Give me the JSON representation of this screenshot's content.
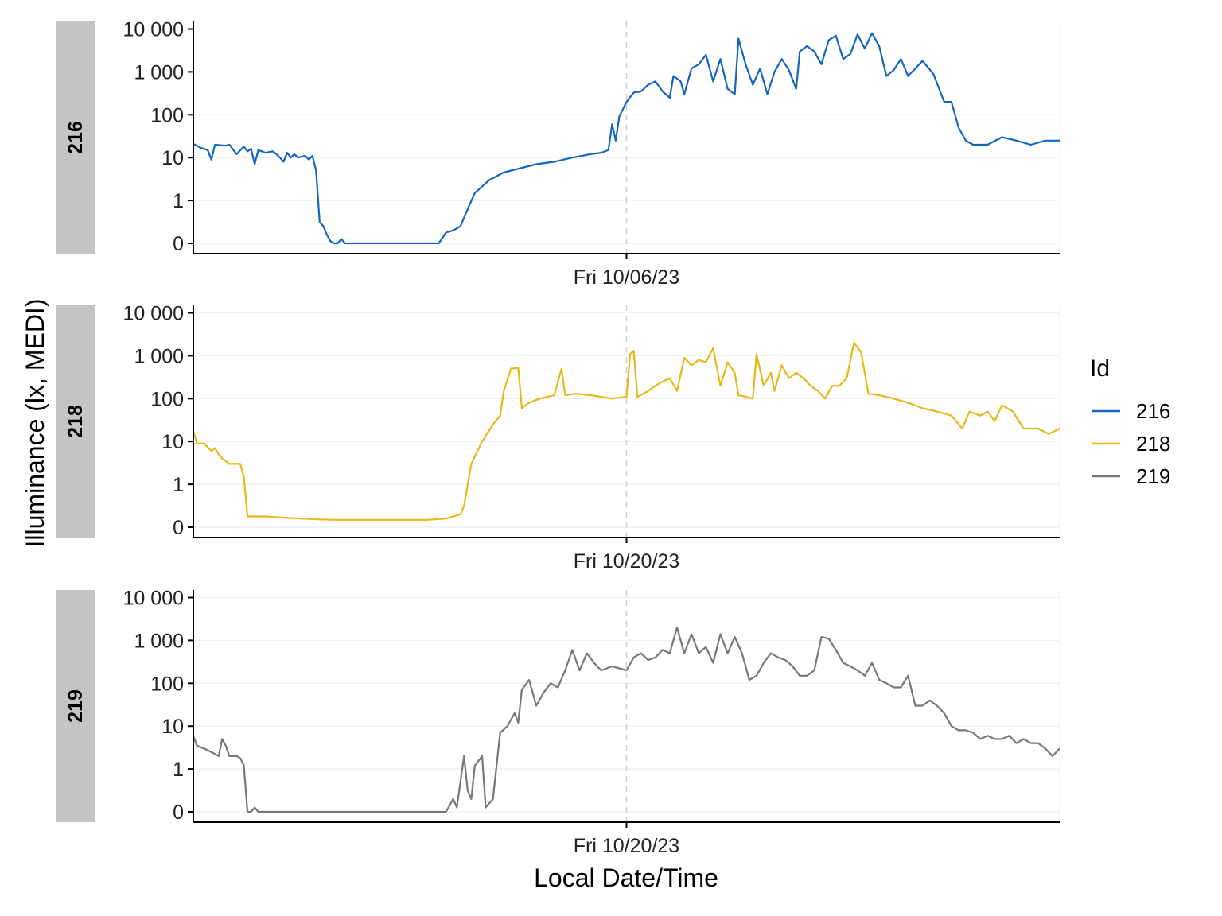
{
  "chart_data": {
    "type": "line",
    "xlabel": "Local Date/Time",
    "ylabel": "Illuminance (lx, MEDI)",
    "y_scale": "symlog",
    "y_ticks": [
      0,
      1,
      10,
      100,
      1000,
      10000
    ],
    "y_tick_labels": [
      "0",
      "1",
      "10",
      "100",
      "1 000",
      "10 000"
    ],
    "legend": {
      "title": "Id",
      "position": "right",
      "entries": [
        "216",
        "218",
        "219"
      ]
    },
    "x_unit": "hours",
    "x_range": [
      0,
      24
    ],
    "panels": [
      {
        "id": "216",
        "strip": "216",
        "color": "#1565C0",
        "date_marker": 12,
        "date_label": "Fri 10/06/23",
        "series": [
          [
            0,
            21
          ],
          [
            0.2,
            17
          ],
          [
            0.4,
            15
          ],
          [
            0.5,
            9
          ],
          [
            0.6,
            20
          ],
          [
            0.9,
            19
          ],
          [
            1,
            20
          ],
          [
            1.2,
            12
          ],
          [
            1.4,
            18
          ],
          [
            1.5,
            14
          ],
          [
            1.6,
            16
          ],
          [
            1.7,
            7
          ],
          [
            1.8,
            15
          ],
          [
            2,
            13
          ],
          [
            2.2,
            14
          ],
          [
            2.3,
            12
          ],
          [
            2.4,
            10
          ],
          [
            2.5,
            8
          ],
          [
            2.6,
            13
          ],
          [
            2.7,
            10
          ],
          [
            2.8,
            12
          ],
          [
            2.9,
            10
          ],
          [
            3.1,
            11
          ],
          [
            3.2,
            9
          ],
          [
            3.3,
            11
          ],
          [
            3.4,
            5
          ],
          [
            3.5,
            0.5
          ],
          [
            3.6,
            0.4
          ],
          [
            3.7,
            0.2
          ],
          [
            3.8,
            0.05
          ],
          [
            3.9,
            0
          ],
          [
            4.0,
            0
          ],
          [
            4.1,
            0.1
          ],
          [
            4.2,
            0
          ],
          [
            4.5,
            0
          ],
          [
            5,
            0
          ],
          [
            6,
            0
          ],
          [
            6.5,
            0
          ],
          [
            6.8,
            0
          ],
          [
            7.0,
            0.25
          ],
          [
            7.2,
            0.3
          ],
          [
            7.4,
            0.4
          ],
          [
            7.6,
            0.8
          ],
          [
            7.8,
            1.5
          ],
          [
            8.2,
            3
          ],
          [
            8.6,
            4.5
          ],
          [
            9,
            5.5
          ],
          [
            9.5,
            7
          ],
          [
            10,
            8
          ],
          [
            10.5,
            10
          ],
          [
            11,
            12
          ],
          [
            11.3,
            13
          ],
          [
            11.5,
            15
          ],
          [
            11.6,
            60
          ],
          [
            11.7,
            25
          ],
          [
            11.8,
            90
          ],
          [
            12,
            200
          ],
          [
            12.2,
            330
          ],
          [
            12.4,
            350
          ],
          [
            12.6,
            500
          ],
          [
            12.8,
            600
          ],
          [
            13,
            350
          ],
          [
            13.2,
            250
          ],
          [
            13.3,
            800
          ],
          [
            13.5,
            600
          ],
          [
            13.6,
            300
          ],
          [
            13.8,
            1200
          ],
          [
            14,
            1500
          ],
          [
            14.2,
            2500
          ],
          [
            14.4,
            600
          ],
          [
            14.6,
            2000
          ],
          [
            14.8,
            400
          ],
          [
            15,
            300
          ],
          [
            15.1,
            6000
          ],
          [
            15.3,
            1500
          ],
          [
            15.5,
            500
          ],
          [
            15.7,
            1200
          ],
          [
            15.9,
            300
          ],
          [
            16.1,
            1000
          ],
          [
            16.3,
            2000
          ],
          [
            16.5,
            1100
          ],
          [
            16.7,
            400
          ],
          [
            16.8,
            3000
          ],
          [
            17,
            4000
          ],
          [
            17.2,
            3000
          ],
          [
            17.4,
            1500
          ],
          [
            17.6,
            5500
          ],
          [
            17.8,
            7000
          ],
          [
            18,
            2000
          ],
          [
            18.2,
            2600
          ],
          [
            18.4,
            7500
          ],
          [
            18.6,
            3500
          ],
          [
            18.8,
            8000
          ],
          [
            19,
            4000
          ],
          [
            19.2,
            800
          ],
          [
            19.4,
            1100
          ],
          [
            19.6,
            2000
          ],
          [
            19.8,
            800
          ],
          [
            20.2,
            1800
          ],
          [
            20.5,
            900
          ],
          [
            20.8,
            200
          ],
          [
            21,
            200
          ],
          [
            21.2,
            50
          ],
          [
            21.4,
            25
          ],
          [
            21.6,
            20
          ],
          [
            22,
            20
          ],
          [
            22.4,
            30
          ],
          [
            22.8,
            25
          ],
          [
            23.2,
            20
          ],
          [
            23.6,
            25
          ],
          [
            24,
            25
          ]
        ]
      },
      {
        "id": "218",
        "strip": "218",
        "color": "#E6B818",
        "date_marker": 12,
        "date_label": "Fri 10/20/23",
        "series": [
          [
            0,
            18
          ],
          [
            0.1,
            9
          ],
          [
            0.3,
            9
          ],
          [
            0.5,
            6
          ],
          [
            0.6,
            7
          ],
          [
            0.7,
            5
          ],
          [
            0.8,
            4
          ],
          [
            1,
            3
          ],
          [
            1.3,
            3
          ],
          [
            1.4,
            1.5
          ],
          [
            1.5,
            0.25
          ],
          [
            2,
            0.25
          ],
          [
            2.5,
            0.22
          ],
          [
            3,
            0.2
          ],
          [
            3.5,
            0.18
          ],
          [
            4,
            0.17
          ],
          [
            4.5,
            0.17
          ],
          [
            5,
            0.17
          ],
          [
            5.5,
            0.17
          ],
          [
            6,
            0.17
          ],
          [
            6.5,
            0.17
          ],
          [
            7,
            0.2
          ],
          [
            7.2,
            0.25
          ],
          [
            7.4,
            0.3
          ],
          [
            7.5,
            0.5
          ],
          [
            7.7,
            3
          ],
          [
            8,
            10
          ],
          [
            8.3,
            25
          ],
          [
            8.5,
            40
          ],
          [
            8.6,
            150
          ],
          [
            8.8,
            500
          ],
          [
            9,
            520
          ],
          [
            9.1,
            60
          ],
          [
            9.3,
            80
          ],
          [
            9.6,
            100
          ],
          [
            10,
            120
          ],
          [
            10.2,
            500
          ],
          [
            10.3,
            120
          ],
          [
            10.6,
            130
          ],
          [
            11,
            120
          ],
          [
            11.3,
            110
          ],
          [
            11.6,
            100
          ],
          [
            12,
            110
          ],
          [
            12.1,
            1100
          ],
          [
            12.2,
            1300
          ],
          [
            12.3,
            110
          ],
          [
            12.6,
            150
          ],
          [
            12.8,
            200
          ],
          [
            13,
            250
          ],
          [
            13.2,
            300
          ],
          [
            13.4,
            150
          ],
          [
            13.6,
            900
          ],
          [
            13.8,
            600
          ],
          [
            14,
            800
          ],
          [
            14.2,
            700
          ],
          [
            14.4,
            1500
          ],
          [
            14.6,
            200
          ],
          [
            14.8,
            700
          ],
          [
            15,
            400
          ],
          [
            15.1,
            120
          ],
          [
            15.3,
            110
          ],
          [
            15.5,
            100
          ],
          [
            15.6,
            1100
          ],
          [
            15.8,
            200
          ],
          [
            16,
            400
          ],
          [
            16.1,
            150
          ],
          [
            16.3,
            600
          ],
          [
            16.5,
            300
          ],
          [
            16.7,
            400
          ],
          [
            16.9,
            300
          ],
          [
            17.1,
            200
          ],
          [
            17.3,
            150
          ],
          [
            17.5,
            100
          ],
          [
            17.7,
            200
          ],
          [
            17.9,
            200
          ],
          [
            18.1,
            300
          ],
          [
            18.3,
            2000
          ],
          [
            18.5,
            1200
          ],
          [
            18.7,
            130
          ],
          [
            19,
            120
          ],
          [
            19.4,
            100
          ],
          [
            19.8,
            80
          ],
          [
            20.2,
            60
          ],
          [
            20.6,
            50
          ],
          [
            21,
            40
          ],
          [
            21.3,
            20
          ],
          [
            21.5,
            50
          ],
          [
            21.8,
            40
          ],
          [
            22,
            50
          ],
          [
            22.2,
            30
          ],
          [
            22.4,
            70
          ],
          [
            22.7,
            50
          ],
          [
            23,
            20
          ],
          [
            23.4,
            20
          ],
          [
            23.7,
            15
          ],
          [
            24,
            20
          ]
        ]
      },
      {
        "id": "219",
        "strip": "219",
        "color": "#777777",
        "date_marker": 12,
        "date_label": "Fri 10/20/23",
        "series": [
          [
            0,
            6
          ],
          [
            0.1,
            3.5
          ],
          [
            0.3,
            3
          ],
          [
            0.5,
            2.5
          ],
          [
            0.7,
            2
          ],
          [
            0.8,
            5
          ],
          [
            0.9,
            3.5
          ],
          [
            1,
            2
          ],
          [
            1.2,
            2
          ],
          [
            1.3,
            1.8
          ],
          [
            1.4,
            1.2
          ],
          [
            1.5,
            0
          ],
          [
            1.6,
            0
          ],
          [
            1.7,
            0.1
          ],
          [
            1.8,
            0
          ],
          [
            2,
            0
          ],
          [
            3,
            0
          ],
          [
            4,
            0
          ],
          [
            5,
            0
          ],
          [
            6,
            0
          ],
          [
            7,
            0
          ],
          [
            7.2,
            0.3
          ],
          [
            7.3,
            0.1
          ],
          [
            7.5,
            2
          ],
          [
            7.6,
            0.5
          ],
          [
            7.7,
            0.3
          ],
          [
            7.8,
            1.2
          ],
          [
            8,
            2
          ],
          [
            8.1,
            0.1
          ],
          [
            8.3,
            0.3
          ],
          [
            8.5,
            7
          ],
          [
            8.7,
            10
          ],
          [
            8.9,
            20
          ],
          [
            9,
            12
          ],
          [
            9.1,
            70
          ],
          [
            9.3,
            120
          ],
          [
            9.5,
            30
          ],
          [
            9.7,
            60
          ],
          [
            9.9,
            100
          ],
          [
            10.1,
            80
          ],
          [
            10.3,
            200
          ],
          [
            10.5,
            600
          ],
          [
            10.7,
            200
          ],
          [
            10.9,
            500
          ],
          [
            11.1,
            300
          ],
          [
            11.3,
            200
          ],
          [
            11.6,
            250
          ],
          [
            12,
            200
          ],
          [
            12.2,
            400
          ],
          [
            12.4,
            500
          ],
          [
            12.6,
            350
          ],
          [
            12.8,
            400
          ],
          [
            13,
            600
          ],
          [
            13.2,
            500
          ],
          [
            13.4,
            2000
          ],
          [
            13.6,
            500
          ],
          [
            13.8,
            1400
          ],
          [
            14,
            500
          ],
          [
            14.2,
            700
          ],
          [
            14.4,
            300
          ],
          [
            14.6,
            1400
          ],
          [
            14.8,
            500
          ],
          [
            15,
            1200
          ],
          [
            15.2,
            500
          ],
          [
            15.4,
            120
          ],
          [
            15.6,
            150
          ],
          [
            15.8,
            300
          ],
          [
            16,
            500
          ],
          [
            16.2,
            400
          ],
          [
            16.4,
            350
          ],
          [
            16.6,
            250
          ],
          [
            16.8,
            150
          ],
          [
            17,
            150
          ],
          [
            17.2,
            200
          ],
          [
            17.4,
            1200
          ],
          [
            17.6,
            1100
          ],
          [
            17.8,
            600
          ],
          [
            18,
            300
          ],
          [
            18.2,
            250
          ],
          [
            18.4,
            200
          ],
          [
            18.6,
            150
          ],
          [
            18.8,
            300
          ],
          [
            19,
            120
          ],
          [
            19.2,
            100
          ],
          [
            19.4,
            80
          ],
          [
            19.6,
            80
          ],
          [
            19.8,
            150
          ],
          [
            20,
            30
          ],
          [
            20.2,
            30
          ],
          [
            20.4,
            40
          ],
          [
            20.6,
            30
          ],
          [
            20.8,
            20
          ],
          [
            21,
            10
          ],
          [
            21.2,
            8
          ],
          [
            21.4,
            8
          ],
          [
            21.6,
            7
          ],
          [
            21.8,
            5
          ],
          [
            22,
            6
          ],
          [
            22.2,
            5
          ],
          [
            22.4,
            5
          ],
          [
            22.6,
            6
          ],
          [
            22.8,
            4
          ],
          [
            23,
            5
          ],
          [
            23.2,
            4
          ],
          [
            23.4,
            4
          ],
          [
            23.6,
            3
          ],
          [
            23.8,
            2
          ],
          [
            24,
            3
          ]
        ]
      }
    ]
  }
}
